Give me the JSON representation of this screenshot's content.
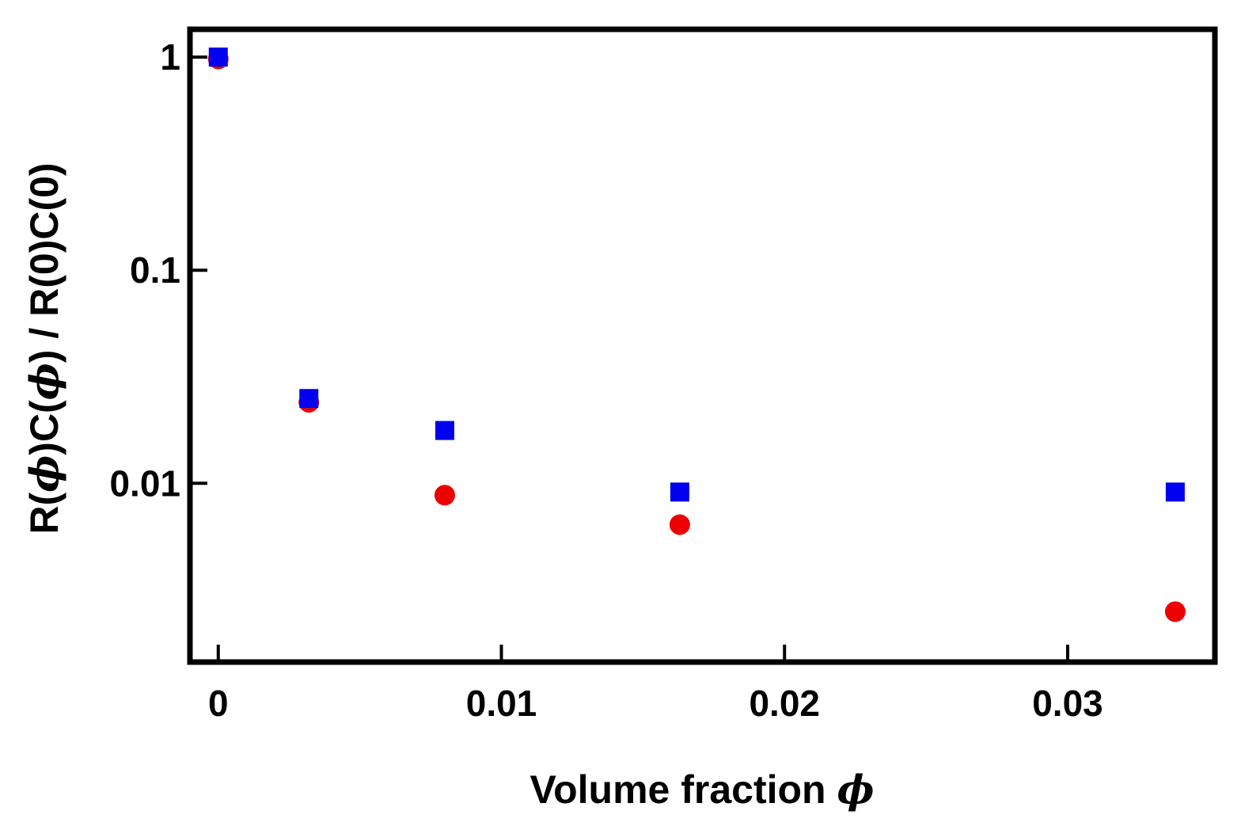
{
  "chart_data": {
    "type": "scatter",
    "title": "",
    "xlabel": {
      "text": "Volume fraction ",
      "symbol": "ϕ"
    },
    "ylabel": {
      "parts": [
        "R(",
        "ϕ",
        ")C(",
        "ϕ",
        ") / R(0)C(0)"
      ]
    },
    "x_scale": "linear",
    "y_scale": "log",
    "xlim": [
      -0.001,
      0.0352
    ],
    "ylim": [
      0.00145,
      1.35
    ],
    "x_ticks": [
      {
        "value": 0,
        "label": "0"
      },
      {
        "value": 0.01,
        "label": "0.01"
      },
      {
        "value": 0.02,
        "label": "0.02"
      },
      {
        "value": 0.03,
        "label": "0.03"
      }
    ],
    "y_ticks": [
      {
        "value": 1,
        "label": "1"
      },
      {
        "value": 0.1,
        "label": "0.1"
      },
      {
        "value": 0.01,
        "label": "0.01"
      }
    ],
    "grid": false,
    "legend": "none",
    "series": [
      {
        "marker": "circle",
        "color": "#ee0000",
        "points": [
          {
            "x": 0.0,
            "y": 0.98
          },
          {
            "x": 0.0032,
            "y": 0.024
          },
          {
            "x": 0.008,
            "y": 0.0088
          },
          {
            "x": 0.0163,
            "y": 0.0064
          },
          {
            "x": 0.0338,
            "y": 0.0025
          }
        ]
      },
      {
        "marker": "square",
        "color": "#0000ee",
        "points": [
          {
            "x": 0.0,
            "y": 1.0
          },
          {
            "x": 0.0032,
            "y": 0.025
          },
          {
            "x": 0.008,
            "y": 0.0177
          },
          {
            "x": 0.0163,
            "y": 0.0091
          },
          {
            "x": 0.0338,
            "y": 0.0091
          }
        ]
      }
    ]
  }
}
